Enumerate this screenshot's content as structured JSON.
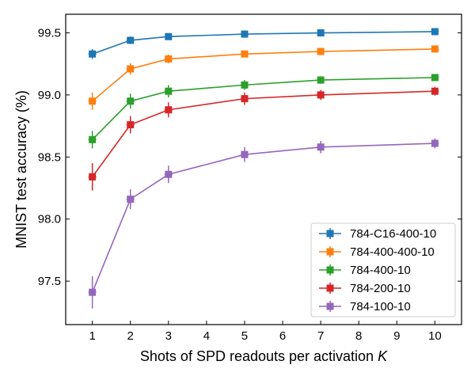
{
  "chart_data": {
    "type": "line",
    "title": "",
    "xlabel_main": "Shots of SPD readouts per activation ",
    "xlabel_italic": "K",
    "ylabel": "MNIST test accuracy (%)",
    "xlim": [
      0.3,
      10.7
    ],
    "ylim": [
      97.15,
      99.65
    ],
    "x_ticks": [
      1,
      2,
      3,
      4,
      5,
      6,
      7,
      8,
      9,
      10
    ],
    "y_ticks": [
      97.5,
      98.0,
      98.5,
      99.0,
      99.5
    ],
    "y_tick_labels": [
      "97.5",
      "98.0",
      "98.5",
      "99.0",
      "99.5"
    ],
    "legend_position": "bottom-right",
    "x": [
      1,
      2,
      3,
      5,
      7,
      10
    ],
    "series": [
      {
        "name": "784-C16-400-10",
        "color": "#1f77b4",
        "values": [
          99.33,
          99.44,
          99.47,
          99.49,
          99.5,
          99.51
        ],
        "errors": [
          0.04,
          0.03,
          0.025,
          0.02,
          0.015,
          0.015
        ]
      },
      {
        "name": "784-400-400-10",
        "color": "#ff7f0e",
        "values": [
          98.95,
          99.21,
          99.29,
          99.33,
          99.35,
          99.37
        ],
        "errors": [
          0.07,
          0.045,
          0.035,
          0.025,
          0.02,
          0.015
        ]
      },
      {
        "name": "784-400-10",
        "color": "#2ca02c",
        "values": [
          98.64,
          98.95,
          99.03,
          99.08,
          99.12,
          99.14
        ],
        "errors": [
          0.07,
          0.06,
          0.05,
          0.04,
          0.03,
          0.025
        ]
      },
      {
        "name": "784-200-10",
        "color": "#d62728",
        "values": [
          98.34,
          98.76,
          98.88,
          98.97,
          99.0,
          99.03
        ],
        "errors": [
          0.11,
          0.07,
          0.06,
          0.05,
          0.04,
          0.035
        ]
      },
      {
        "name": "784-100-10",
        "color": "#9467bd",
        "values": [
          97.41,
          98.16,
          98.36,
          98.52,
          98.58,
          98.61
        ],
        "errors": [
          0.13,
          0.08,
          0.07,
          0.06,
          0.05,
          0.04
        ]
      }
    ]
  }
}
